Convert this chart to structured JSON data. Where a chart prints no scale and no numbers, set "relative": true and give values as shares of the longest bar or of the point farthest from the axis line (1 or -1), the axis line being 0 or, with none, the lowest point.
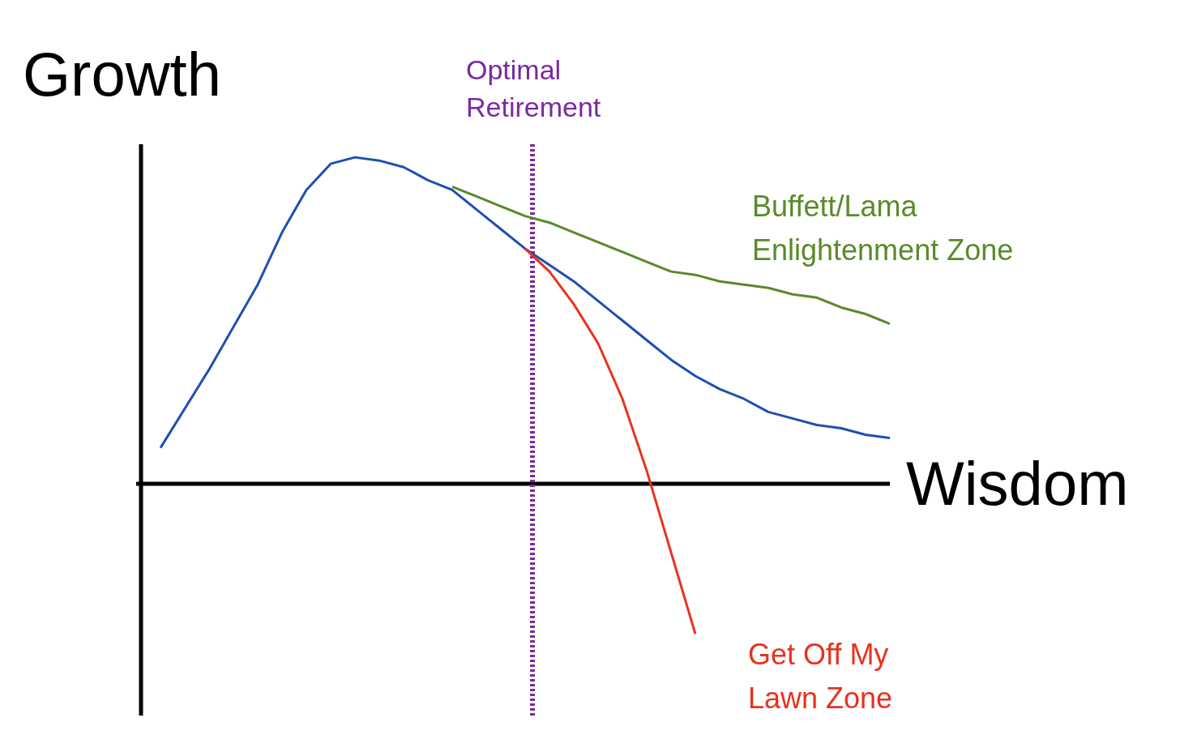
{
  "chart_data": {
    "type": "line",
    "relative": true,
    "xlabel": "Wisdom",
    "ylabel": "Growth",
    "categories": [
      null,
      null,
      null,
      null,
      null,
      null,
      null,
      null,
      null,
      null,
      null,
      null,
      null,
      null,
      null,
      null,
      null,
      null,
      null,
      null,
      null,
      null,
      null,
      null,
      null,
      null,
      null,
      null,
      null,
      null,
      null
    ],
    "series": [
      {
        "color": "#1f4fb0",
        "values": [
          0.11,
          0.23,
          0.35,
          0.48,
          0.61,
          0.77,
          0.9,
          0.98,
          1,
          0.99,
          0.97,
          0.93,
          0.9,
          0.84,
          0.78,
          0.72,
          0.67,
          0.62,
          0.56,
          0.5,
          0.44,
          0.38,
          0.33,
          0.29,
          0.26,
          0.22,
          0.2,
          0.18,
          0.17,
          0.15,
          0.14
        ]
      },
      {
        "name": "Buffett/Lama Enlightenment Zone",
        "color": "#5a8a2a",
        "values": [
          null,
          null,
          null,
          null,
          null,
          null,
          null,
          null,
          null,
          null,
          null,
          null,
          0.91,
          0.88,
          0.85,
          0.82,
          0.8,
          0.77,
          0.74,
          0.71,
          0.68,
          0.65,
          0.64,
          0.62,
          0.61,
          0.6,
          0.58,
          0.57,
          0.54,
          0.52,
          0.49
        ]
      },
      {
        "name": "Get Off My Lawn Zone",
        "color": "#e8321e",
        "values": [
          null,
          null,
          null,
          null,
          null,
          null,
          null,
          null,
          null,
          null,
          null,
          null,
          null,
          null,
          null,
          0.72,
          0.65,
          0.55,
          0.43,
          0.26,
          0.04,
          -0.21,
          -0.46,
          null,
          null,
          null,
          null,
          null,
          null,
          null,
          null
        ]
      }
    ],
    "ref_lines": [
      {
        "axis": "x",
        "label": "Optimal Retirement",
        "color": "#7a2a9e",
        "line_style": "dotted"
      }
    ],
    "legend": false,
    "grid": false,
    "marker": "none",
    "line_style": "solid"
  }
}
